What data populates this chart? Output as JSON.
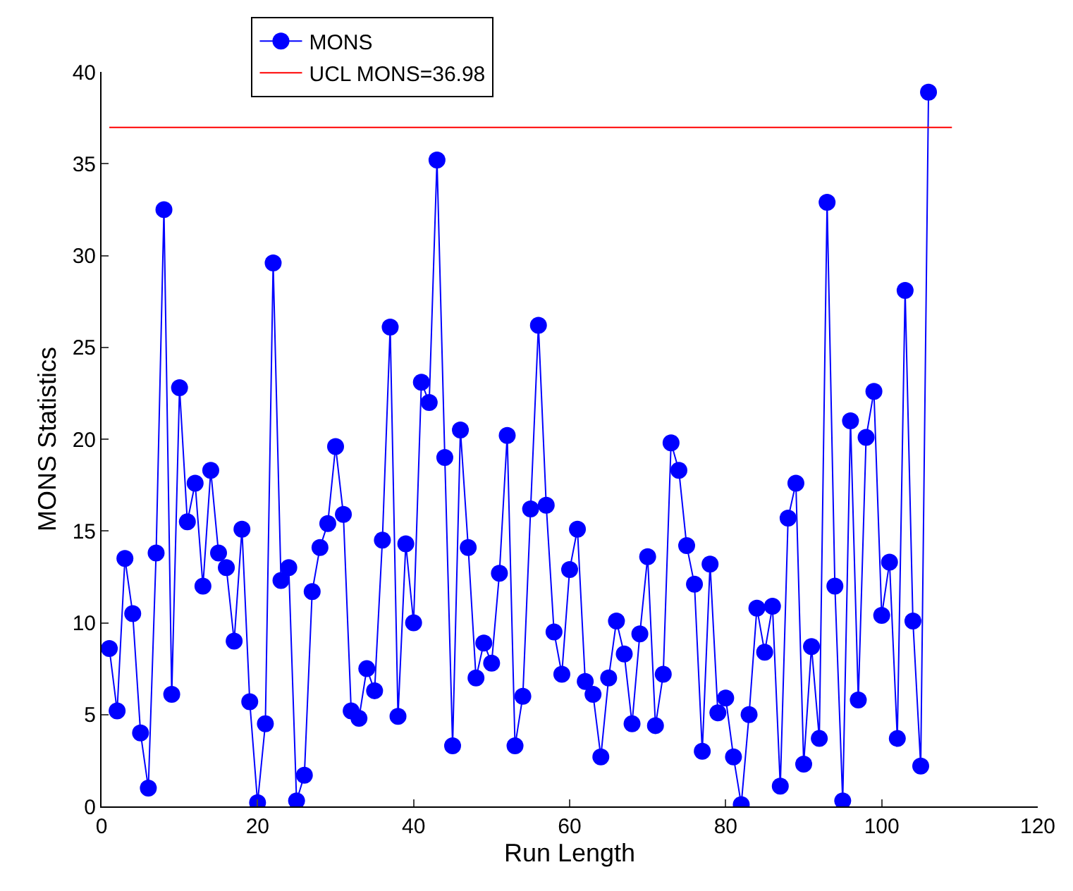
{
  "chart_data": {
    "type": "line",
    "xlabel": "Run Length",
    "ylabel": "MONS Statistics",
    "x": [
      1,
      2,
      3,
      4,
      5,
      6,
      7,
      8,
      9,
      10,
      11,
      12,
      13,
      14,
      15,
      16,
      17,
      18,
      19,
      20,
      21,
      22,
      23,
      24,
      25,
      26,
      27,
      28,
      29,
      30,
      31,
      32,
      33,
      34,
      35,
      36,
      37,
      38,
      39,
      40,
      41,
      42,
      43,
      44,
      45,
      46,
      47,
      48,
      49,
      50,
      51,
      52,
      53,
      54,
      55,
      56,
      57,
      58,
      59,
      60,
      61,
      62,
      63,
      64,
      65,
      66,
      67,
      68,
      69,
      70,
      71,
      72,
      73,
      74,
      75,
      76,
      77,
      78,
      79,
      80,
      81,
      82,
      83,
      84,
      85,
      86,
      87,
      88,
      89,
      90,
      91,
      92,
      93,
      94,
      95,
      96,
      97,
      98,
      99,
      100,
      101,
      102,
      103,
      104,
      105,
      106
    ],
    "series": [
      {
        "name": "MONS",
        "color": "#0000ff",
        "marker": "circle",
        "values": [
          8.6,
          5.2,
          13.5,
          10.5,
          4.0,
          1.0,
          13.8,
          32.5,
          6.1,
          22.8,
          15.5,
          17.6,
          12.0,
          18.3,
          13.8,
          13.0,
          9.0,
          15.1,
          5.7,
          0.2,
          4.5,
          29.6,
          12.3,
          13.0,
          0.3,
          1.7,
          11.7,
          14.1,
          15.4,
          19.6,
          15.9,
          5.2,
          4.8,
          7.5,
          6.3,
          14.5,
          26.1,
          4.9,
          14.3,
          10.0,
          23.1,
          22.0,
          35.2,
          19.0,
          3.3,
          20.5,
          14.1,
          7.0,
          8.9,
          7.8,
          12.7,
          20.2,
          3.3,
          6.0,
          16.2,
          26.2,
          16.4,
          9.5,
          7.2,
          12.9,
          15.1,
          6.8,
          6.1,
          2.7,
          7.0,
          10.1,
          8.3,
          4.5,
          9.4,
          13.6,
          4.4,
          7.2,
          19.8,
          18.3,
          14.2,
          12.1,
          3.0,
          13.2,
          5.1,
          5.9,
          2.7,
          0.1,
          5.0,
          10.8,
          8.4,
          10.9,
          1.1,
          15.7,
          17.6,
          2.3,
          8.7,
          3.7,
          32.9,
          12.0,
          0.3,
          21.0,
          5.8,
          20.1,
          22.6,
          10.4,
          13.3,
          3.7,
          28.1,
          10.1,
          2.2,
          38.9
        ]
      },
      {
        "name": "UCL MONS=36.98",
        "color": "#ff0000",
        "marker": "none",
        "x": [
          1,
          109
        ],
        "values": [
          36.98,
          36.98
        ]
      }
    ],
    "xlim": [
      0,
      120
    ],
    "xticks": [
      0,
      20,
      40,
      60,
      80,
      100,
      120
    ],
    "ylim": [
      0,
      40
    ],
    "yticks": [
      0,
      5,
      10,
      15,
      20,
      25,
      30,
      35,
      40
    ],
    "legend": "top",
    "line_style": "solid"
  }
}
